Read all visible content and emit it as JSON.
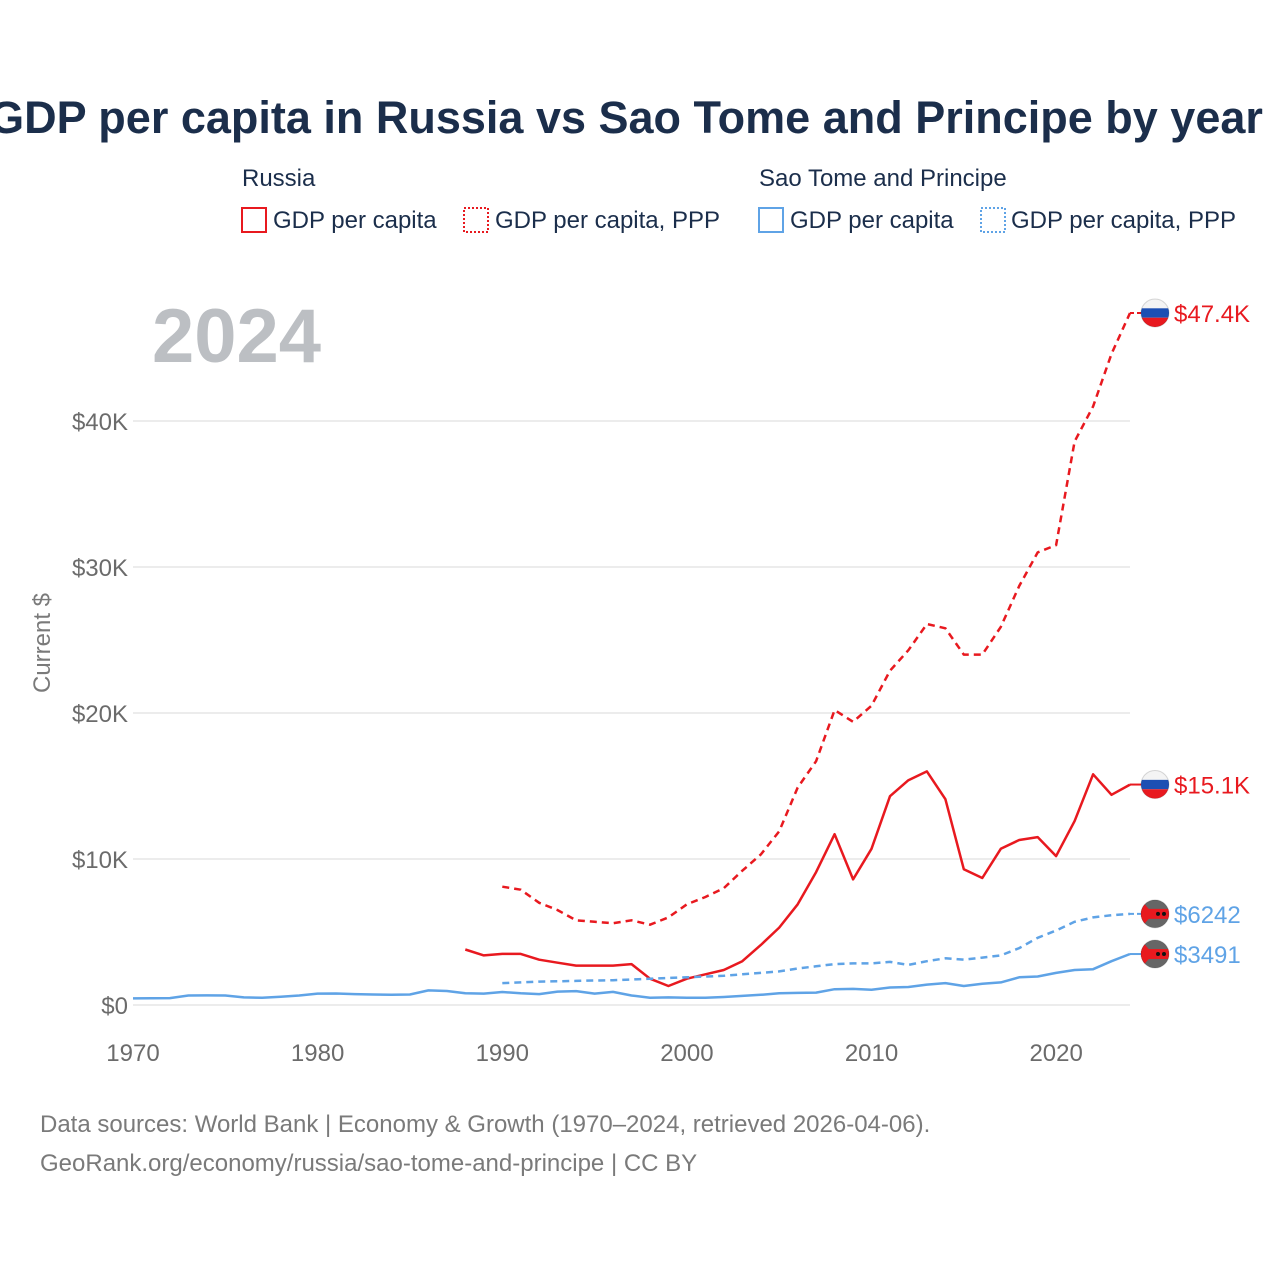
{
  "colors": {
    "russia": "#e8191f",
    "stp": "#5fa3e6",
    "title": "#1b2e4b",
    "tick": "#6b6b6b",
    "grid": "#e6e6e6",
    "year": "#bcbfc3"
  },
  "legend": {
    "group1": "Russia",
    "group2": "Sao Tome and Principe",
    "item_gdp": "GDP per capita",
    "item_ppp": "GDP per capita, PPP"
  },
  "highlight_year": "2024",
  "source_line1": "Data sources: World Bank | Economy & Growth (1970–2024, retrieved 2026-04-06).",
  "source_line2": "GeoRank.org/economy/russia/sao-tome-and-principe | CC BY",
  "chart_data": {
    "type": "line",
    "title": "GDP per capita in Russia vs Sao Tome and Principe by year",
    "xlabel": "",
    "ylabel": "Current $",
    "xlim": [
      1970,
      2024
    ],
    "ylim": [
      0,
      47400
    ],
    "x_ticks": [
      {
        "value": 1970,
        "label": "1970"
      },
      {
        "value": 1980,
        "label": "1980"
      },
      {
        "value": 1990,
        "label": "1990"
      },
      {
        "value": 2000,
        "label": "2000"
      },
      {
        "value": 2010,
        "label": "2010"
      },
      {
        "value": 2020,
        "label": "2020"
      }
    ],
    "y_ticks": [
      {
        "value": 0,
        "label": "$0"
      },
      {
        "value": 10000,
        "label": "$10K"
      },
      {
        "value": 20000,
        "label": "$20K"
      },
      {
        "value": 30000,
        "label": "$30K"
      },
      {
        "value": 40000,
        "label": "$40K"
      }
    ],
    "series": [
      {
        "name": "Russia — GDP per capita, PPP",
        "country": "russia",
        "dashed": true,
        "end_label": "$47.4K",
        "points": [
          [
            1990,
            8100
          ],
          [
            1991,
            7900
          ],
          [
            1992,
            7000
          ],
          [
            1993,
            6500
          ],
          [
            1994,
            5800
          ],
          [
            1995,
            5700
          ],
          [
            1996,
            5600
          ],
          [
            1997,
            5800
          ],
          [
            1998,
            5500
          ],
          [
            1999,
            6000
          ],
          [
            2000,
            6900
          ],
          [
            2001,
            7400
          ],
          [
            2002,
            8000
          ],
          [
            2003,
            9200
          ],
          [
            2004,
            10300
          ],
          [
            2005,
            11900
          ],
          [
            2006,
            14900
          ],
          [
            2007,
            16700
          ],
          [
            2008,
            20200
          ],
          [
            2009,
            19400
          ],
          [
            2010,
            20500
          ],
          [
            2011,
            22900
          ],
          [
            2012,
            24300
          ],
          [
            2013,
            26100
          ],
          [
            2014,
            25800
          ],
          [
            2015,
            24000
          ],
          [
            2016,
            24000
          ],
          [
            2017,
            25900
          ],
          [
            2018,
            28700
          ],
          [
            2019,
            31000
          ],
          [
            2020,
            31500
          ],
          [
            2021,
            38600
          ],
          [
            2022,
            41000
          ],
          [
            2023,
            44600
          ],
          [
            2024,
            47400
          ]
        ]
      },
      {
        "name": "Russia — GDP per capita",
        "country": "russia",
        "dashed": false,
        "end_label": "$15.1K",
        "points": [
          [
            1988,
            3800
          ],
          [
            1989,
            3400
          ],
          [
            1990,
            3500
          ],
          [
            1991,
            3500
          ],
          [
            1992,
            3100
          ],
          [
            1993,
            2900
          ],
          [
            1994,
            2700
          ],
          [
            1995,
            2700
          ],
          [
            1996,
            2700
          ],
          [
            1997,
            2800
          ],
          [
            1998,
            1800
          ],
          [
            1999,
            1300
          ],
          [
            2000,
            1800
          ],
          [
            2001,
            2100
          ],
          [
            2002,
            2400
          ],
          [
            2003,
            3000
          ],
          [
            2004,
            4100
          ],
          [
            2005,
            5300
          ],
          [
            2006,
            6900
          ],
          [
            2007,
            9100
          ],
          [
            2008,
            11700
          ],
          [
            2009,
            8600
          ],
          [
            2010,
            10700
          ],
          [
            2011,
            14300
          ],
          [
            2012,
            15400
          ],
          [
            2013,
            16000
          ],
          [
            2014,
            14100
          ],
          [
            2015,
            9300
          ],
          [
            2016,
            8700
          ],
          [
            2017,
            10700
          ],
          [
            2018,
            11300
          ],
          [
            2019,
            11500
          ],
          [
            2020,
            10200
          ],
          [
            2021,
            12600
          ],
          [
            2022,
            15800
          ],
          [
            2023,
            14400
          ],
          [
            2024,
            15100
          ]
        ]
      },
      {
        "name": "Sao Tome and Principe — GDP per capita, PPP",
        "country": "stp",
        "dashed": true,
        "end_label": "$6242",
        "points": [
          [
            1990,
            1500
          ],
          [
            1991,
            1550
          ],
          [
            1992,
            1600
          ],
          [
            1993,
            1620
          ],
          [
            1994,
            1650
          ],
          [
            1995,
            1680
          ],
          [
            1996,
            1700
          ],
          [
            1997,
            1750
          ],
          [
            1998,
            1800
          ],
          [
            1999,
            1850
          ],
          [
            2000,
            1900
          ],
          [
            2001,
            1950
          ],
          [
            2002,
            2000
          ],
          [
            2003,
            2100
          ],
          [
            2004,
            2200
          ],
          [
            2005,
            2300
          ],
          [
            2006,
            2500
          ],
          [
            2007,
            2650
          ],
          [
            2008,
            2800
          ],
          [
            2009,
            2850
          ],
          [
            2010,
            2850
          ],
          [
            2011,
            2950
          ],
          [
            2012,
            2750
          ],
          [
            2013,
            3000
          ],
          [
            2014,
            3200
          ],
          [
            2015,
            3100
          ],
          [
            2016,
            3250
          ],
          [
            2017,
            3400
          ],
          [
            2018,
            3900
          ],
          [
            2019,
            4600
          ],
          [
            2020,
            5100
          ],
          [
            2021,
            5700
          ],
          [
            2022,
            6000
          ],
          [
            2023,
            6150
          ],
          [
            2024,
            6242
          ]
        ]
      },
      {
        "name": "Sao Tome and Principe — GDP per capita",
        "country": "stp",
        "dashed": false,
        "end_label": "$3491",
        "points": [
          [
            1970,
            450
          ],
          [
            1971,
            460
          ],
          [
            1972,
            470
          ],
          [
            1973,
            650
          ],
          [
            1974,
            660
          ],
          [
            1975,
            650
          ],
          [
            1976,
            520
          ],
          [
            1977,
            500
          ],
          [
            1978,
            560
          ],
          [
            1979,
            650
          ],
          [
            1980,
            780
          ],
          [
            1981,
            790
          ],
          [
            1982,
            750
          ],
          [
            1983,
            720
          ],
          [
            1984,
            700
          ],
          [
            1985,
            720
          ],
          [
            1986,
            1000
          ],
          [
            1987,
            960
          ],
          [
            1988,
            800
          ],
          [
            1989,
            780
          ],
          [
            1990,
            890
          ],
          [
            1991,
            800
          ],
          [
            1992,
            750
          ],
          [
            1993,
            920
          ],
          [
            1994,
            950
          ],
          [
            1995,
            780
          ],
          [
            1996,
            900
          ],
          [
            1997,
            650
          ],
          [
            1998,
            500
          ],
          [
            1999,
            520
          ],
          [
            2000,
            500
          ],
          [
            2001,
            500
          ],
          [
            2002,
            550
          ],
          [
            2003,
            620
          ],
          [
            2004,
            700
          ],
          [
            2005,
            800
          ],
          [
            2006,
            830
          ],
          [
            2007,
            850
          ],
          [
            2008,
            1080
          ],
          [
            2009,
            1100
          ],
          [
            2010,
            1050
          ],
          [
            2011,
            1200
          ],
          [
            2012,
            1230
          ],
          [
            2013,
            1400
          ],
          [
            2014,
            1500
          ],
          [
            2015,
            1300
          ],
          [
            2016,
            1450
          ],
          [
            2017,
            1550
          ],
          [
            2018,
            1900
          ],
          [
            2019,
            1950
          ],
          [
            2020,
            2200
          ],
          [
            2021,
            2400
          ],
          [
            2022,
            2450
          ],
          [
            2023,
            3000
          ],
          [
            2024,
            3491
          ]
        ]
      }
    ]
  }
}
